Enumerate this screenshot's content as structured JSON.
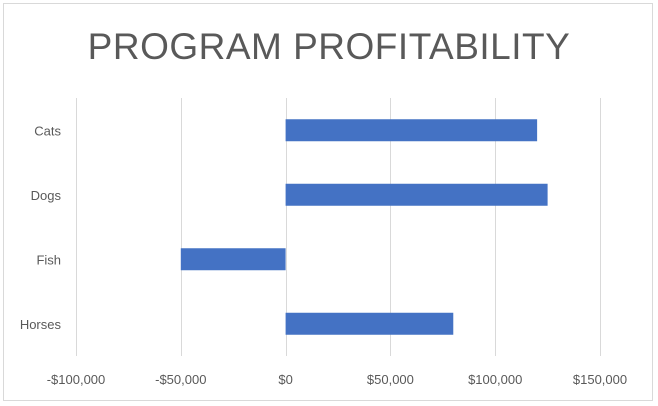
{
  "chart_data": {
    "type": "bar",
    "orientation": "horizontal",
    "title": "PROGRAM PROFITABILITY",
    "categories": [
      "Cats",
      "Dogs",
      "Fish",
      "Horses"
    ],
    "values": [
      120000,
      125000,
      -50000,
      80000
    ],
    "xlim": [
      -100000,
      150000
    ],
    "x_ticks": [
      -100000,
      -50000,
      0,
      50000,
      100000,
      150000
    ],
    "x_tick_labels": [
      "-$100,000",
      "-$50,000",
      "$0",
      "$50,000",
      "$100,000",
      "$150,000"
    ],
    "xlabel": "",
    "ylabel": "",
    "grid": "vertical",
    "legend": "none",
    "bar_color": "#4472c4",
    "grid_color": "#d9d9d9",
    "text_color": "#595959"
  }
}
